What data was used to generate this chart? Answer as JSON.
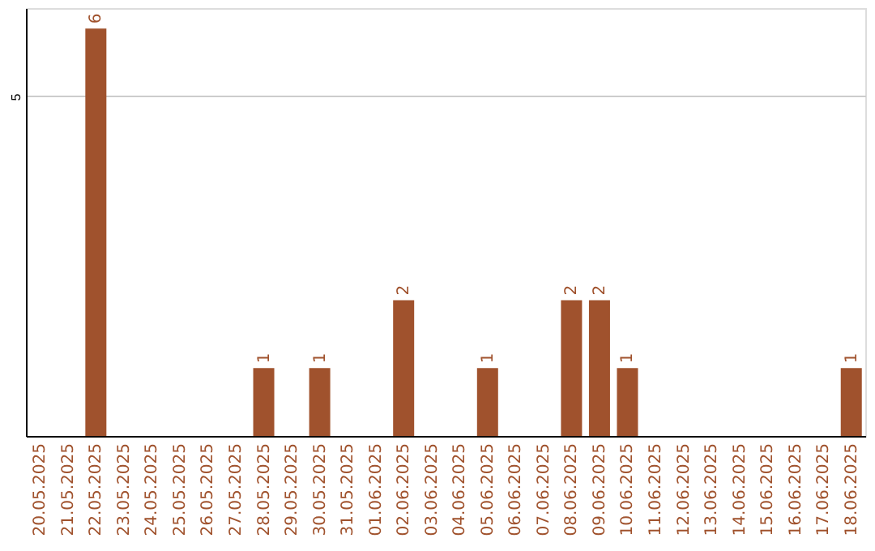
{
  "chart_data": {
    "type": "bar",
    "categories": [
      "20.05.2025",
      "21.05.2025",
      "22.05.2025",
      "23.05.2025",
      "24.05.2025",
      "25.05.2025",
      "26.05.2025",
      "27.05.2025",
      "28.05.2025",
      "29.05.2025",
      "30.05.2025",
      "31.05.2025",
      "01.06.2025",
      "02.06.2025",
      "03.06.2025",
      "04.06.2025",
      "05.06.2025",
      "06.06.2025",
      "07.06.2025",
      "08.06.2025",
      "09.06.2025",
      "10.06.2025",
      "11.06.2025",
      "12.06.2025",
      "13.06.2025",
      "14.06.2025",
      "15.06.2025",
      "16.06.2025",
      "17.06.2025",
      "18.06.2025"
    ],
    "values": [
      0,
      0,
      6,
      0,
      0,
      0,
      0,
      0,
      1,
      0,
      1,
      0,
      0,
      2,
      0,
      0,
      1,
      0,
      0,
      2,
      2,
      1,
      0,
      0,
      0,
      0,
      0,
      0,
      0,
      1
    ],
    "value_labels": [
      null,
      null,
      "6",
      null,
      null,
      null,
      null,
      null,
      "1",
      null,
      "1",
      null,
      null,
      "2",
      null,
      null,
      "1",
      null,
      null,
      "2",
      "2",
      "1",
      null,
      null,
      null,
      null,
      null,
      null,
      null,
      "1"
    ],
    "color": "#a0522d",
    "ylim": [
      0,
      6.3
    ],
    "yticks": [
      5
    ],
    "grid": "y"
  }
}
